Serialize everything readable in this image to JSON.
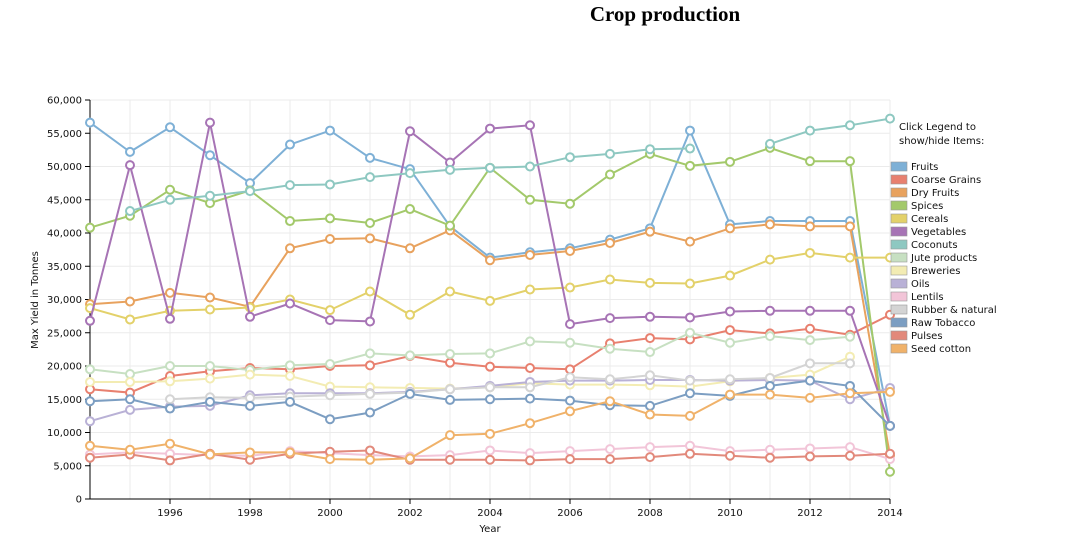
{
  "chart_data": {
    "type": "line",
    "title": "Crop production",
    "xlabel": "Year",
    "ylabel": "Max Yield in Tonnes",
    "xlim": [
      1994,
      2014
    ],
    "ylim": [
      0,
      60000
    ],
    "x_ticks": [
      "1996",
      "1998",
      "2000",
      "2002",
      "2004",
      "2006",
      "2008",
      "2010",
      "2012",
      "2014"
    ],
    "y_ticks": [
      "0",
      "5,000",
      "10,000",
      "15,000",
      "20,000",
      "25,000",
      "30,000",
      "35,000",
      "40,000",
      "45,000",
      "50,000",
      "55,000",
      "60,000"
    ],
    "grid": true,
    "legend_position": "right",
    "legend_note": [
      "Click Legend to",
      "show/hide Items:"
    ],
    "x": [
      1994,
      1995,
      1996,
      1997,
      1998,
      1999,
      2000,
      2001,
      2002,
      2003,
      2004,
      2005,
      2006,
      2007,
      2008,
      2009,
      2010,
      2011,
      2012,
      2013,
      2014
    ],
    "series": [
      {
        "name": "Fruits",
        "color": "#7eb0d6",
        "values": [
          56600,
          52200,
          55900,
          51700,
          47500,
          53300,
          55400,
          51300,
          49600,
          41000,
          36300,
          37100,
          37700,
          39000,
          40700,
          55400,
          41300,
          41800,
          41800,
          41800,
          11000
        ]
      },
      {
        "name": "Coarse Grains",
        "color": "#e8806f",
        "values": [
          16500,
          16000,
          18500,
          19200,
          19700,
          19500,
          20000,
          20100,
          21500,
          20500,
          19900,
          19700,
          19500,
          23400,
          24200,
          24000,
          25400,
          24900,
          25600,
          24700,
          27700
        ]
      },
      {
        "name": "Dry Fruits",
        "color": "#e8a25e",
        "values": [
          29300,
          29700,
          31000,
          30300,
          28900,
          37700,
          39100,
          39200,
          37700,
          40400,
          35900,
          36700,
          37300,
          38500,
          40200,
          38700,
          40700,
          41300,
          41000,
          41000,
          6500
        ]
      },
      {
        "name": "Spices",
        "color": "#a3c96b",
        "values": [
          40800,
          42600,
          46500,
          44500,
          46400,
          41800,
          42200,
          41500,
          43600,
          41100,
          49800,
          45000,
          44400,
          48800,
          51900,
          50100,
          50700,
          52800,
          50800,
          50800,
          4100
        ]
      },
      {
        "name": "Cereals",
        "color": "#e3d16a",
        "values": [
          28700,
          27000,
          28300,
          28500,
          28800,
          30000,
          28400,
          31200,
          27700,
          31200,
          29800,
          31500,
          31800,
          33000,
          32500,
          32400,
          33600,
          36000,
          37000,
          36300,
          36300
        ]
      },
      {
        "name": "Vegetables",
        "color": "#a774b5",
        "values": [
          26800,
          50200,
          27100,
          56600,
          27400,
          29400,
          26900,
          26700,
          55300,
          50600,
          55700,
          56200,
          26300,
          27200,
          27400,
          27300,
          28200,
          28300,
          28300,
          28300,
          11000
        ]
      },
      {
        "name": "Coconuts",
        "color": "#8ec8c1",
        "values": [
          null,
          43300,
          45000,
          45600,
          46300,
          47200,
          47300,
          48400,
          49000,
          49500,
          49800,
          50000,
          51400,
          51900,
          52600,
          52700,
          null,
          53400,
          55400,
          56200,
          57200
        ]
      },
      {
        "name": "Jute products",
        "color": "#c7e0c2",
        "values": [
          19500,
          18800,
          20000,
          20000,
          19400,
          20100,
          20300,
          21900,
          21600,
          21800,
          21900,
          23700,
          23500,
          22600,
          22100,
          25000,
          23500,
          24500,
          23900,
          24400,
          null
        ]
      },
      {
        "name": "Breweries",
        "color": "#f3ecb3",
        "values": [
          17600,
          17600,
          17700,
          18100,
          18700,
          18500,
          16900,
          16800,
          16700,
          16600,
          16800,
          17400,
          17200,
          17200,
          17100,
          16900,
          17700,
          18200,
          18700,
          21400,
          null
        ]
      },
      {
        "name": "Oils",
        "color": "#b9b1d6",
        "values": [
          11700,
          13400,
          13900,
          14000,
          15600,
          15900,
          15900,
          15900,
          16100,
          16500,
          17000,
          17600,
          17800,
          17800,
          17900,
          17900,
          17800,
          17900,
          17800,
          15000,
          16700
        ]
      },
      {
        "name": "Lentils",
        "color": "#f2c5d8",
        "values": [
          6700,
          7000,
          6800,
          6600,
          6500,
          7200,
          6900,
          6600,
          6400,
          6600,
          7300,
          6900,
          7200,
          7500,
          7800,
          8000,
          7200,
          7400,
          7600,
          7800,
          6000
        ]
      },
      {
        "name": "Rubber & natural",
        "color": "#d4d4d4",
        "values": [
          null,
          null,
          15000,
          15300,
          15200,
          15400,
          15600,
          15800,
          16000,
          16500,
          16800,
          16800,
          18300,
          18000,
          18600,
          17800,
          18000,
          18200,
          20400,
          20400,
          null
        ]
      },
      {
        "name": "Raw Tobacco",
        "color": "#7c9ec2",
        "values": [
          14700,
          15000,
          13600,
          14600,
          14000,
          14600,
          12000,
          13000,
          15800,
          14900,
          15000,
          15100,
          14800,
          14100,
          14000,
          15900,
          15500,
          17000,
          17800,
          17000,
          11000
        ]
      },
      {
        "name": "Pulses",
        "color": "#e2897b",
        "values": [
          6200,
          6700,
          5800,
          6800,
          5900,
          6800,
          7100,
          7300,
          5900,
          5900,
          5900,
          5800,
          6000,
          6000,
          6300,
          6800,
          6500,
          6200,
          6400,
          6500,
          6800
        ]
      },
      {
        "name": "Seed cotton",
        "color": "#f0b26a",
        "values": [
          8000,
          7400,
          8300,
          6700,
          7000,
          7000,
          6000,
          5900,
          6100,
          9600,
          9800,
          11400,
          13200,
          14700,
          12700,
          12500,
          15700,
          15700,
          15200,
          15900,
          16100
        ]
      }
    ]
  }
}
